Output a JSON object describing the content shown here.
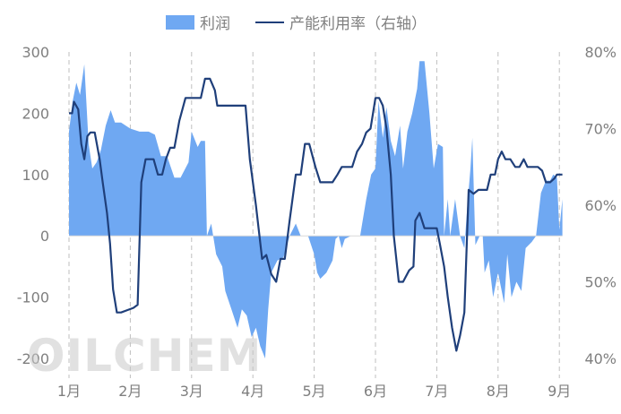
{
  "legend": {
    "area_label": "利润",
    "line_label": "产能利用率（右轴）"
  },
  "watermark": "OILCHEM",
  "colors": {
    "area": "#6fa8f2",
    "line": "#1f3f7a",
    "tick": "#7f7f7f",
    "grid": "#bfbfbf"
  },
  "chart_data": {
    "type": "area",
    "title": "",
    "grid": "dashed vertical at month boundaries",
    "legend_position": "top",
    "x_axis": {
      "labels": [
        "1月",
        "2月",
        "3月",
        "4月",
        "5月",
        "6月",
        "7月",
        "8月",
        "9月"
      ],
      "xlim": [
        0,
        8.05
      ]
    },
    "y_left": {
      "label": "",
      "ylim": [
        -200,
        300
      ],
      "ticks": [
        "300",
        "200",
        "100",
        "0",
        "-100",
        "-200"
      ],
      "tick_values": [
        300,
        200,
        100,
        0,
        -100,
        -200
      ]
    },
    "y_right": {
      "label": "",
      "ylim": [
        40,
        80
      ],
      "ticks": [
        "80%",
        "70%",
        "60%",
        "50%",
        "40%"
      ],
      "tick_values": [
        80,
        70,
        60,
        50,
        40
      ]
    },
    "series": [
      {
        "name": "利润",
        "axis": "left",
        "kind": "area",
        "points": [
          [
            0.0,
            170
          ],
          [
            0.06,
            220
          ],
          [
            0.12,
            250
          ],
          [
            0.18,
            230
          ],
          [
            0.25,
            280
          ],
          [
            0.32,
            150
          ],
          [
            0.38,
            110
          ],
          [
            0.45,
            120
          ],
          [
            0.52,
            140
          ],
          [
            0.6,
            180
          ],
          [
            0.68,
            205
          ],
          [
            0.75,
            185
          ],
          [
            0.85,
            185
          ],
          [
            1.0,
            175
          ],
          [
            1.15,
            170
          ],
          [
            1.3,
            170
          ],
          [
            1.4,
            165
          ],
          [
            1.5,
            130
          ],
          [
            1.6,
            130
          ],
          [
            1.72,
            95
          ],
          [
            1.82,
            95
          ],
          [
            1.95,
            120
          ],
          [
            2.0,
            170
          ],
          [
            2.1,
            145
          ],
          [
            2.15,
            155
          ],
          [
            2.22,
            155
          ],
          [
            2.25,
            0
          ],
          [
            2.32,
            20
          ],
          [
            2.4,
            -30
          ],
          [
            2.5,
            -50
          ],
          [
            2.55,
            -90
          ],
          [
            2.65,
            -120
          ],
          [
            2.75,
            -150
          ],
          [
            2.82,
            -120
          ],
          [
            2.9,
            -130
          ],
          [
            2.98,
            -165
          ],
          [
            3.05,
            -150
          ],
          [
            3.12,
            -180
          ],
          [
            3.2,
            -200
          ],
          [
            3.25,
            -120
          ],
          [
            3.3,
            -60
          ],
          [
            3.4,
            -40
          ],
          [
            3.5,
            -35
          ],
          [
            3.6,
            0
          ],
          [
            3.7,
            20
          ],
          [
            3.78,
            0
          ],
          [
            3.9,
            0
          ],
          [
            4.0,
            -30
          ],
          [
            4.05,
            -60
          ],
          [
            4.1,
            -70
          ],
          [
            4.2,
            -60
          ],
          [
            4.3,
            -40
          ],
          [
            4.35,
            -5
          ],
          [
            4.4,
            0
          ],
          [
            4.45,
            -20
          ],
          [
            4.5,
            -5
          ],
          [
            4.6,
            0
          ],
          [
            4.75,
            0
          ],
          [
            4.85,
            60
          ],
          [
            4.93,
            100
          ],
          [
            5.0,
            110
          ],
          [
            5.05,
            220
          ],
          [
            5.12,
            160
          ],
          [
            5.18,
            210
          ],
          [
            5.25,
            155
          ],
          [
            5.32,
            130
          ],
          [
            5.4,
            180
          ],
          [
            5.45,
            110
          ],
          [
            5.52,
            170
          ],
          [
            5.6,
            200
          ],
          [
            5.68,
            240
          ],
          [
            5.72,
            285
          ],
          [
            5.8,
            285
          ],
          [
            5.88,
            200
          ],
          [
            5.95,
            110
          ],
          [
            6.02,
            150
          ],
          [
            6.1,
            145
          ],
          [
            6.12,
            0
          ],
          [
            6.18,
            60
          ],
          [
            6.22,
            0
          ],
          [
            6.3,
            60
          ],
          [
            6.38,
            0
          ],
          [
            6.45,
            -20
          ],
          [
            6.5,
            50
          ],
          [
            6.55,
            110
          ],
          [
            6.58,
            160
          ],
          [
            6.63,
            -15
          ],
          [
            6.7,
            0
          ],
          [
            6.75,
            0
          ],
          [
            6.78,
            -60
          ],
          [
            6.85,
            -40
          ],
          [
            6.92,
            -100
          ],
          [
            7.0,
            -60
          ],
          [
            7.1,
            -110
          ],
          [
            7.15,
            -30
          ],
          [
            7.22,
            -100
          ],
          [
            7.3,
            -75
          ],
          [
            7.38,
            -90
          ],
          [
            7.45,
            -20
          ],
          [
            7.55,
            -10
          ],
          [
            7.62,
            0
          ],
          [
            7.7,
            70
          ],
          [
            7.78,
            90
          ],
          [
            7.85,
            90
          ],
          [
            7.9,
            100
          ],
          [
            7.96,
            95
          ],
          [
            8.0,
            10
          ],
          [
            8.05,
            60
          ],
          [
            8.05,
            0
          ]
        ]
      },
      {
        "name": "产能利用率（右轴）",
        "axis": "right",
        "kind": "line",
        "points": [
          [
            0.0,
            72
          ],
          [
            0.05,
            72
          ],
          [
            0.08,
            73.5
          ],
          [
            0.15,
            72.5
          ],
          [
            0.2,
            68
          ],
          [
            0.25,
            66
          ],
          [
            0.3,
            69
          ],
          [
            0.35,
            69.5
          ],
          [
            0.42,
            69.5
          ],
          [
            0.5,
            66
          ],
          [
            0.55,
            63
          ],
          [
            0.62,
            59
          ],
          [
            0.67,
            55
          ],
          [
            0.72,
            49
          ],
          [
            0.78,
            46
          ],
          [
            0.85,
            46
          ],
          [
            0.95,
            46.3
          ],
          [
            1.05,
            46.6
          ],
          [
            1.12,
            47
          ],
          [
            1.18,
            63
          ],
          [
            1.25,
            66
          ],
          [
            1.3,
            66
          ],
          [
            1.38,
            66
          ],
          [
            1.45,
            64
          ],
          [
            1.52,
            64
          ],
          [
            1.58,
            66
          ],
          [
            1.65,
            67.5
          ],
          [
            1.72,
            67.5
          ],
          [
            1.8,
            71
          ],
          [
            1.9,
            74
          ],
          [
            2.05,
            74
          ],
          [
            2.15,
            74
          ],
          [
            2.22,
            76.5
          ],
          [
            2.3,
            76.5
          ],
          [
            2.38,
            75
          ],
          [
            2.42,
            73
          ],
          [
            2.5,
            73
          ],
          [
            2.6,
            73
          ],
          [
            2.7,
            73
          ],
          [
            2.8,
            73
          ],
          [
            2.88,
            73
          ],
          [
            2.95,
            66
          ],
          [
            3.05,
            60
          ],
          [
            3.15,
            53
          ],
          [
            3.22,
            53.5
          ],
          [
            3.3,
            51
          ],
          [
            3.38,
            50
          ],
          [
            3.45,
            53
          ],
          [
            3.52,
            53
          ],
          [
            3.6,
            58
          ],
          [
            3.7,
            64
          ],
          [
            3.78,
            64
          ],
          [
            3.85,
            68
          ],
          [
            3.92,
            68
          ],
          [
            4.02,
            65
          ],
          [
            4.1,
            63
          ],
          [
            4.2,
            63
          ],
          [
            4.3,
            63
          ],
          [
            4.38,
            64
          ],
          [
            4.45,
            65
          ],
          [
            4.55,
            65
          ],
          [
            4.62,
            65
          ],
          [
            4.7,
            67
          ],
          [
            4.78,
            68
          ],
          [
            4.85,
            69.5
          ],
          [
            4.92,
            70
          ],
          [
            5.0,
            74
          ],
          [
            5.06,
            74
          ],
          [
            5.12,
            73
          ],
          [
            5.18,
            70
          ],
          [
            5.25,
            64
          ],
          [
            5.3,
            56
          ],
          [
            5.38,
            50
          ],
          [
            5.45,
            50
          ],
          [
            5.55,
            51.5
          ],
          [
            5.62,
            52
          ],
          [
            5.65,
            58
          ],
          [
            5.72,
            59
          ],
          [
            5.8,
            57
          ],
          [
            5.9,
            57
          ],
          [
            6.0,
            57
          ],
          [
            6.05,
            55
          ],
          [
            6.12,
            52
          ],
          [
            6.18,
            48
          ],
          [
            6.25,
            44
          ],
          [
            6.32,
            41
          ],
          [
            6.38,
            43
          ],
          [
            6.45,
            46
          ],
          [
            6.52,
            62
          ],
          [
            6.6,
            61.5
          ],
          [
            6.68,
            62
          ],
          [
            6.75,
            62
          ],
          [
            6.82,
            62
          ],
          [
            6.88,
            64
          ],
          [
            6.95,
            64
          ],
          [
            7.0,
            66
          ],
          [
            7.06,
            67
          ],
          [
            7.12,
            66
          ],
          [
            7.2,
            66
          ],
          [
            7.28,
            65
          ],
          [
            7.35,
            65
          ],
          [
            7.42,
            66
          ],
          [
            7.48,
            65
          ],
          [
            7.55,
            65
          ],
          [
            7.65,
            65
          ],
          [
            7.72,
            64.5
          ],
          [
            7.78,
            63
          ],
          [
            7.85,
            63
          ],
          [
            7.92,
            63.5
          ],
          [
            7.96,
            64
          ],
          [
            8.05,
            64
          ]
        ]
      }
    ]
  }
}
